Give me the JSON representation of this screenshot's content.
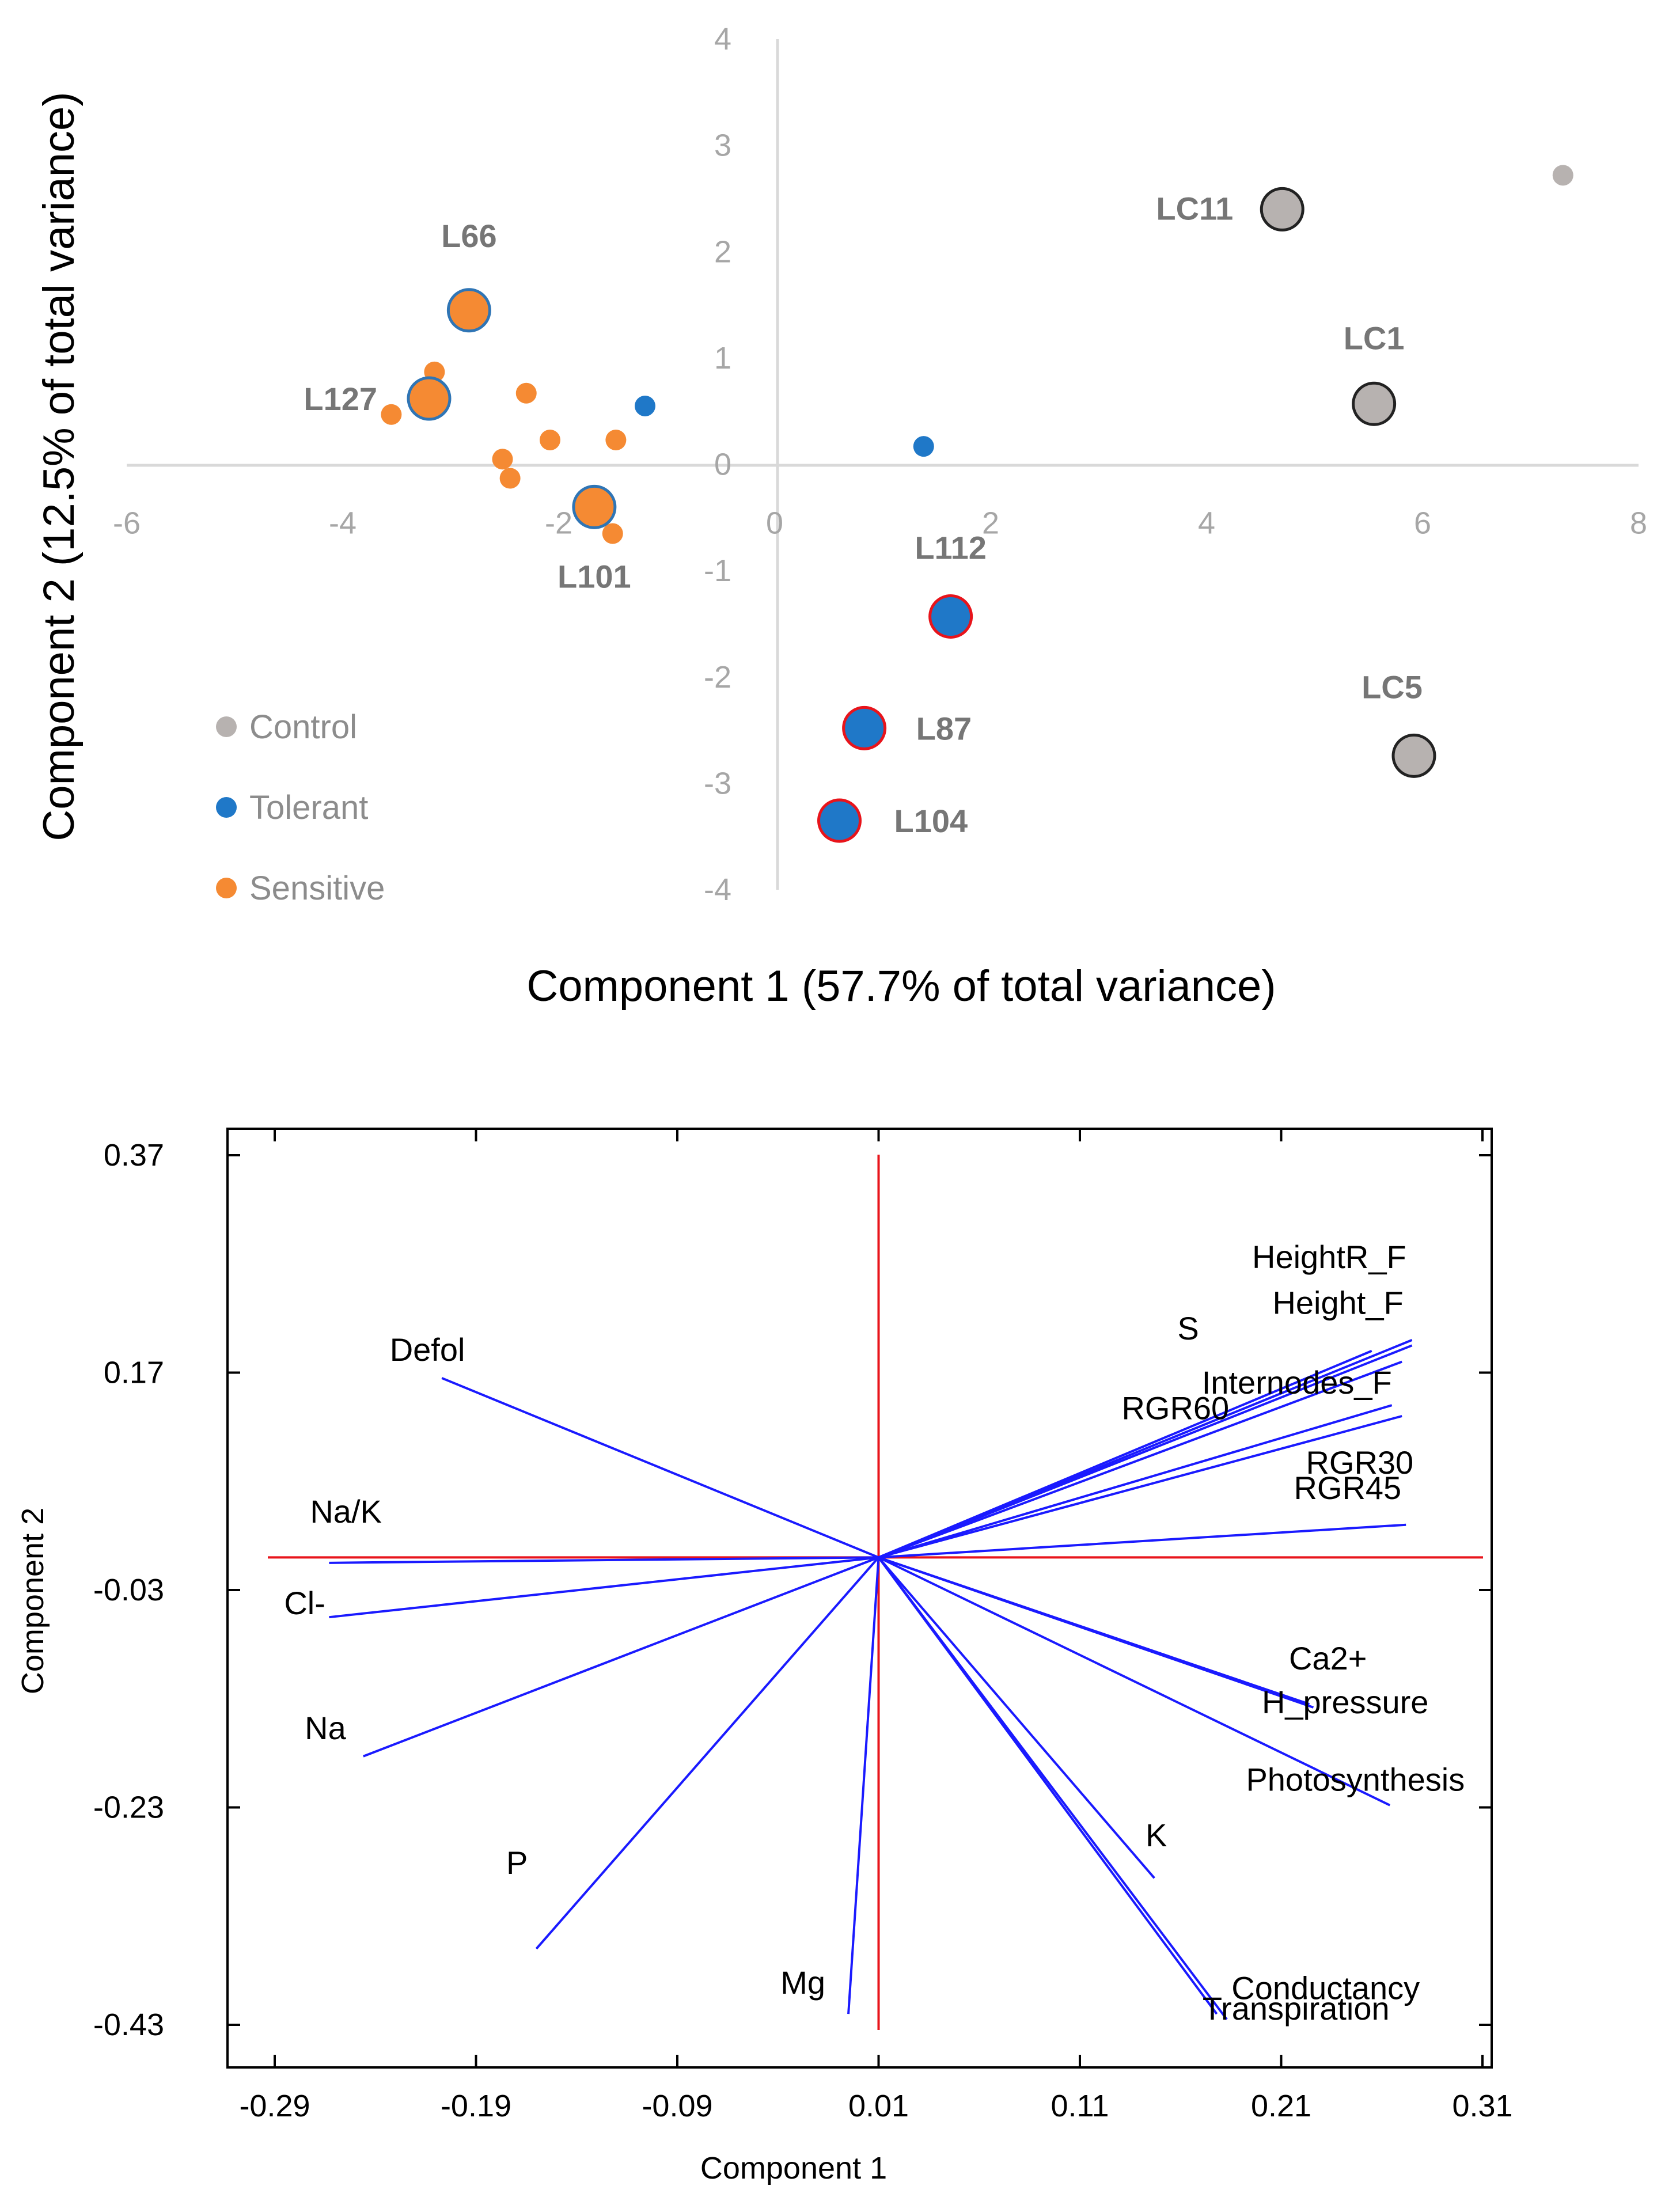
{
  "chart_data": [
    {
      "type": "scatter",
      "title": "",
      "xlabel": "Component 1 (57.7% of total variance)",
      "ylabel": "Component 2 (12.5% of total variance)",
      "xlim": [
        -6,
        8
      ],
      "ylim": [
        -4,
        4
      ],
      "xticks": [
        "-6",
        "-4",
        "-2",
        "0",
        "2",
        "4",
        "6",
        "8"
      ],
      "yticks": [
        "4",
        "3",
        "2",
        "1",
        "0",
        "-1",
        "-2",
        "-3",
        "-4"
      ],
      "legend": {
        "position": "bottom-left",
        "entries": [
          {
            "name": "Control",
            "color": "#b7b2b0"
          },
          {
            "name": "Tolerant",
            "color": "#1f78c8"
          },
          {
            "name": "Sensitive",
            "color": "#f58a33"
          }
        ]
      },
      "points": [
        {
          "x": 7.3,
          "y": 2.72,
          "group": "Control",
          "large": false,
          "label": ""
        },
        {
          "x": 4.7,
          "y": 2.4,
          "group": "Control",
          "large": true,
          "label": "LC11"
        },
        {
          "x": 5.55,
          "y": 0.57,
          "group": "Control",
          "large": true,
          "label": "LC1"
        },
        {
          "x": 5.92,
          "y": -2.74,
          "group": "Control",
          "large": true,
          "label": "LC5"
        },
        {
          "x": -1.2,
          "y": 0.55,
          "group": "Tolerant",
          "large": false,
          "label": ""
        },
        {
          "x": 1.38,
          "y": 0.17,
          "group": "Tolerant",
          "large": false,
          "label": ""
        },
        {
          "x": 1.63,
          "y": -1.43,
          "group": "Tolerant",
          "large": true,
          "label": "L112"
        },
        {
          "x": 0.83,
          "y": -2.48,
          "group": "Tolerant",
          "large": true,
          "label": "L87"
        },
        {
          "x": 0.6,
          "y": -3.35,
          "group": "Tolerant",
          "large": true,
          "label": "L104"
        },
        {
          "x": -2.83,
          "y": 1.45,
          "group": "Sensitive",
          "large": true,
          "label": "L66"
        },
        {
          "x": -3.2,
          "y": 0.62,
          "group": "Sensitive",
          "large": true,
          "label": "L127"
        },
        {
          "x": -1.67,
          "y": -0.4,
          "group": "Sensitive",
          "large": true,
          "label": "L101"
        },
        {
          "x": -3.15,
          "y": 0.87,
          "group": "Sensitive",
          "large": false,
          "label": ""
        },
        {
          "x": -3.55,
          "y": 0.47,
          "group": "Sensitive",
          "large": false,
          "label": ""
        },
        {
          "x": -2.3,
          "y": 0.67,
          "group": "Sensitive",
          "large": false,
          "label": ""
        },
        {
          "x": -2.08,
          "y": 0.23,
          "group": "Sensitive",
          "large": false,
          "label": ""
        },
        {
          "x": -2.52,
          "y": 0.05,
          "group": "Sensitive",
          "large": false,
          "label": ""
        },
        {
          "x": -2.45,
          "y": -0.13,
          "group": "Sensitive",
          "large": false,
          "label": ""
        },
        {
          "x": -1.47,
          "y": 0.23,
          "group": "Sensitive",
          "large": false,
          "label": ""
        },
        {
          "x": -1.5,
          "y": -0.65,
          "group": "Sensitive",
          "large": false,
          "label": ""
        }
      ]
    },
    {
      "type": "biplot",
      "title": "",
      "xlabel": "Component 1",
      "ylabel": "Component 2",
      "xlim": [
        -0.29,
        0.31
      ],
      "ylim": [
        -0.43,
        0.37
      ],
      "xticks": [
        "-0.29",
        "-0.19",
        "-0.09",
        "0.01",
        "0.11",
        "0.21",
        "0.31"
      ],
      "yticks": [
        "0.37",
        "0.17",
        "-0.03",
        "-0.23",
        "-0.43"
      ],
      "origin": [
        0.01,
        0.0
      ],
      "vectors": [
        {
          "name": "HeightR_F",
          "x": 0.275,
          "y": 0.2
        },
        {
          "name": "Height_F",
          "x": 0.275,
          "y": 0.195
        },
        {
          "name": "Internodes_F",
          "x": 0.265,
          "y": 0.14
        },
        {
          "name": "S",
          "x": 0.255,
          "y": 0.19
        },
        {
          "name": "RGR60",
          "x": 0.27,
          "y": 0.18
        },
        {
          "name": "RGR30",
          "x": 0.27,
          "y": 0.13
        },
        {
          "name": "RGR45",
          "x": 0.272,
          "y": 0.03
        },
        {
          "name": "Defol",
          "x": -0.207,
          "y": 0.165
        },
        {
          "name": "Na/K",
          "x": -0.263,
          "y": -0.005
        },
        {
          "name": "Cl-",
          "x": -0.263,
          "y": -0.055
        },
        {
          "name": "Na",
          "x": -0.246,
          "y": -0.183
        },
        {
          "name": "P",
          "x": -0.16,
          "y": -0.36
        },
        {
          "name": "Mg",
          "x": -0.005,
          "y": -0.42
        },
        {
          "name": "Ca2+",
          "x": 0.224,
          "y": -0.135
        },
        {
          "name": "H_pressure",
          "x": 0.226,
          "y": -0.138
        },
        {
          "name": "Photosynthesis",
          "x": 0.264,
          "y": -0.228
        },
        {
          "name": "K",
          "x": 0.147,
          "y": -0.295
        },
        {
          "name": "Conductancy",
          "x": 0.183,
          "y": -0.425
        },
        {
          "name": "Transpiration",
          "x": 0.178,
          "y": -0.42
        }
      ]
    }
  ]
}
